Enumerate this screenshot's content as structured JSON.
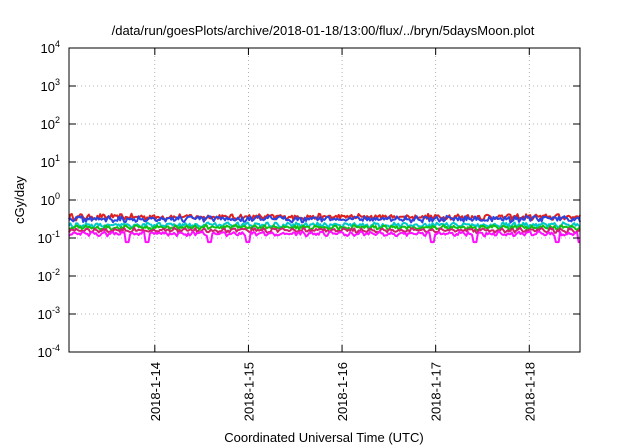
{
  "chart_data": {
    "type": "line",
    "title": "/data/run/goesPlots/archive/2018-01-18/13:00/flux/../bryn/5daysMoon.plot",
    "xlabel": "Coordinated Universal Time (UTC)",
    "ylabel": "cGy/day",
    "x_range": [
      "2018-01-13T02:00",
      "2018-01-18T13:00"
    ],
    "x_ticks": [
      "2018-1-14",
      "2018-1-15",
      "2018-1-16",
      "2018-1-17",
      "2018-1-18"
    ],
    "y_scale": "log",
    "ylim": [
      0.0001,
      10000
    ],
    "y_ticks": [
      {
        "base": "10",
        "exp": "-4",
        "value": 0.0001
      },
      {
        "base": "10",
        "exp": "-3",
        "value": 0.001
      },
      {
        "base": "10",
        "exp": "-2",
        "value": 0.01
      },
      {
        "base": "10",
        "exp": "-1",
        "value": 0.1
      },
      {
        "base": "10",
        "exp": "0",
        "value": 1
      },
      {
        "base": "10",
        "exp": "1",
        "value": 10
      },
      {
        "base": "10",
        "exp": "2",
        "value": 100
      },
      {
        "base": "10",
        "exp": "3",
        "value": 1000
      },
      {
        "base": "10",
        "exp": "4",
        "value": 10000
      }
    ],
    "grid": true,
    "series": [
      {
        "color": "#e0201e",
        "level": 0.36,
        "variation": 0.15,
        "dips": []
      },
      {
        "color": "#2a44e0",
        "level": 0.32,
        "variation": 0.15,
        "dips": []
      },
      {
        "color": "#00c8c8",
        "level": 0.22,
        "variation": 0.12,
        "dips": []
      },
      {
        "color": "#10c010",
        "level": 0.19,
        "variation": 0.1,
        "dips": []
      },
      {
        "color": "#d02070",
        "level": 0.16,
        "variation": 0.1,
        "dips": []
      },
      {
        "color": "#ff10ff",
        "level": 0.13,
        "variation": 0.1,
        "dips": [
          "2018-01-13T17:00",
          "2018-01-13T22:00",
          "2018-01-14T14:00",
          "2018-01-15T00:00",
          "2018-01-16T23:00",
          "2018-01-17T10:00",
          "2018-01-18T07:00",
          "2018-01-18T13:00"
        ]
      }
    ]
  }
}
